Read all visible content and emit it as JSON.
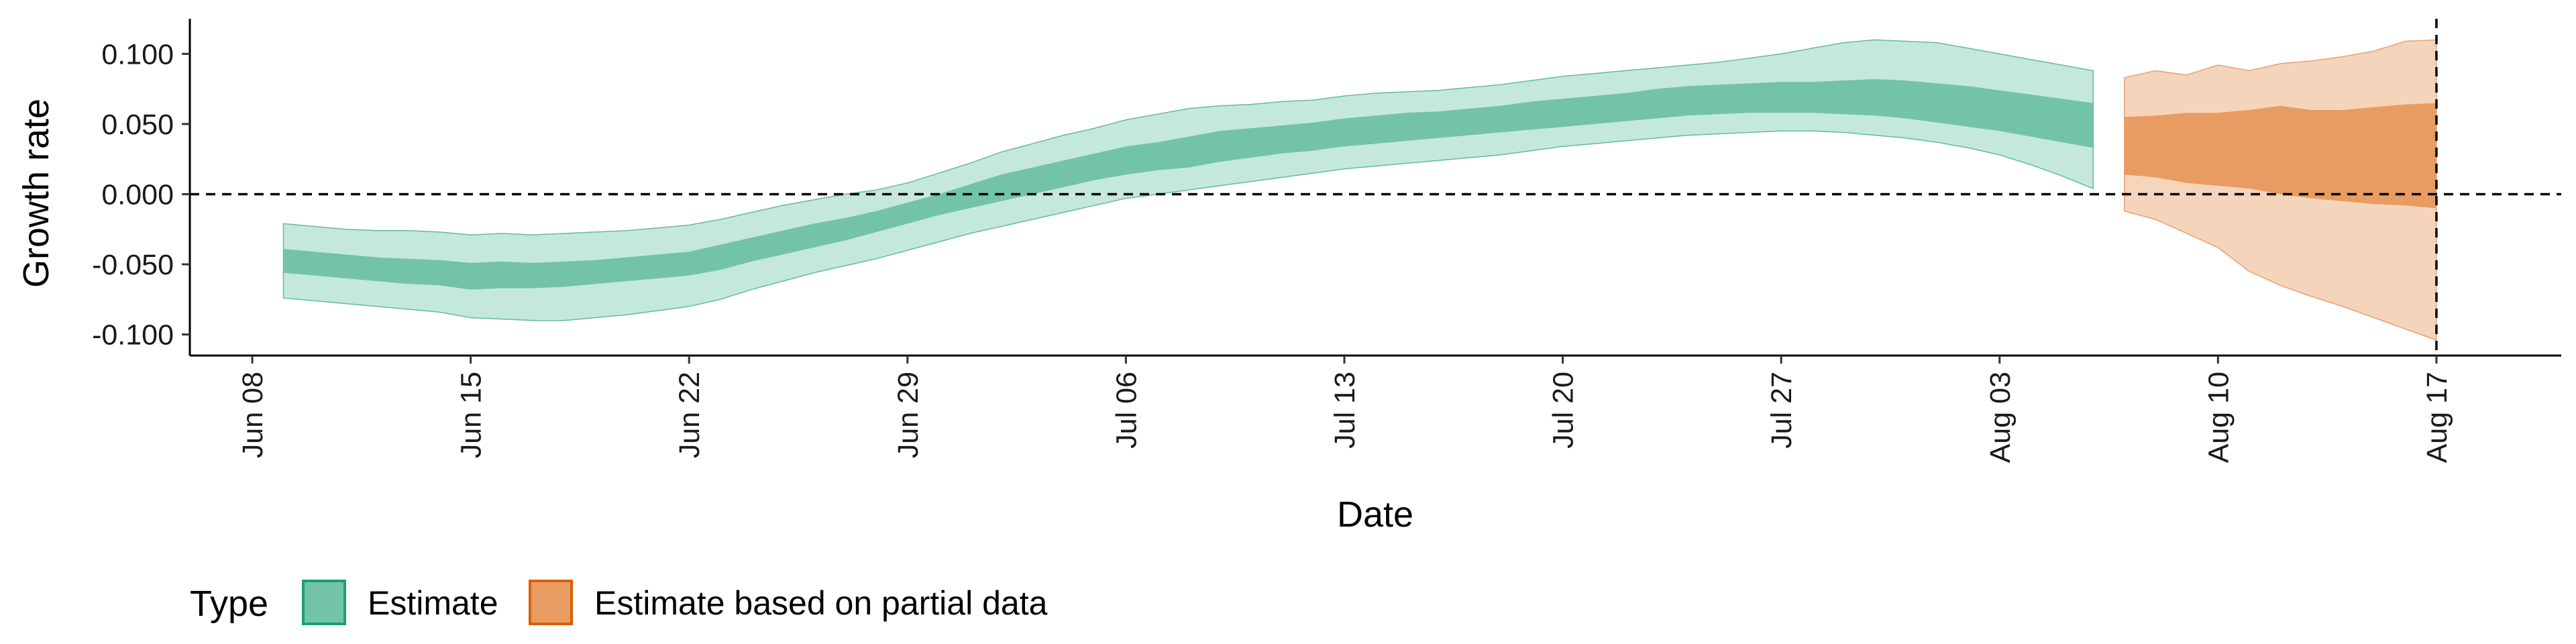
{
  "chart_data": {
    "type": "area",
    "xlabel": "Date",
    "ylabel": "Growth rate",
    "ylim": [
      -0.115,
      0.125
    ],
    "xlim": [
      "2020-06-06",
      "2020-08-21"
    ],
    "x_ticks": [
      {
        "date": "2020-06-08",
        "label": "Jun 08"
      },
      {
        "date": "2020-06-15",
        "label": "Jun 15"
      },
      {
        "date": "2020-06-22",
        "label": "Jun 22"
      },
      {
        "date": "2020-06-29",
        "label": "Jun 29"
      },
      {
        "date": "2020-07-06",
        "label": "Jul 06"
      },
      {
        "date": "2020-07-13",
        "label": "Jul 13"
      },
      {
        "date": "2020-07-20",
        "label": "Jul 20"
      },
      {
        "date": "2020-07-27",
        "label": "Jul 27"
      },
      {
        "date": "2020-08-03",
        "label": "Aug 03"
      },
      {
        "date": "2020-08-10",
        "label": "Aug 10"
      },
      {
        "date": "2020-08-17",
        "label": "Aug 17"
      }
    ],
    "y_ticks": [
      {
        "value": 0.1,
        "label": "0.100"
      },
      {
        "value": 0.05,
        "label": "0.050"
      },
      {
        "value": 0.0,
        "label": "0.000"
      },
      {
        "value": -0.05,
        "label": "-0.050"
      },
      {
        "value": -0.1,
        "label": "-0.100"
      }
    ],
    "hline": 0,
    "vline": "2020-08-17",
    "grid": false,
    "legend": {
      "title": "Type",
      "position": "bottom-left",
      "entries": [
        {
          "label": "Estimate",
          "fill": "#73c3a9",
          "stroke": "#1b9e77"
        },
        {
          "label": "Estimate based on partial data",
          "fill": "#e89c62",
          "stroke": "#d95f02"
        }
      ]
    },
    "series": [
      {
        "type": "Estimate",
        "colors": {
          "outer": "#c5e8dc",
          "inner": "#73c3a9",
          "edge": "#66bb99"
        },
        "x": [
          "2020-06-09",
          "2020-06-10",
          "2020-06-11",
          "2020-06-12",
          "2020-06-13",
          "2020-06-14",
          "2020-06-15",
          "2020-06-16",
          "2020-06-17",
          "2020-06-18",
          "2020-06-19",
          "2020-06-20",
          "2020-06-21",
          "2020-06-22",
          "2020-06-23",
          "2020-06-24",
          "2020-06-25",
          "2020-06-26",
          "2020-06-27",
          "2020-06-28",
          "2020-06-29",
          "2020-06-30",
          "2020-07-01",
          "2020-07-02",
          "2020-07-03",
          "2020-07-04",
          "2020-07-05",
          "2020-07-06",
          "2020-07-07",
          "2020-07-08",
          "2020-07-09",
          "2020-07-10",
          "2020-07-11",
          "2020-07-12",
          "2020-07-13",
          "2020-07-14",
          "2020-07-15",
          "2020-07-16",
          "2020-07-17",
          "2020-07-18",
          "2020-07-19",
          "2020-07-20",
          "2020-07-21",
          "2020-07-22",
          "2020-07-23",
          "2020-07-24",
          "2020-07-25",
          "2020-07-26",
          "2020-07-27",
          "2020-07-28",
          "2020-07-29",
          "2020-07-30",
          "2020-07-31",
          "2020-08-01",
          "2020-08-02",
          "2020-08-03",
          "2020-08-04",
          "2020-08-05",
          "2020-08-06"
        ],
        "upper90": [
          -0.021,
          -0.023,
          -0.025,
          -0.026,
          -0.026,
          -0.027,
          -0.029,
          -0.028,
          -0.029,
          -0.028,
          -0.027,
          -0.026,
          -0.024,
          -0.022,
          -0.018,
          -0.013,
          -0.008,
          -0.004,
          0.0,
          0.003,
          0.008,
          0.015,
          0.022,
          0.03,
          0.036,
          0.042,
          0.047,
          0.053,
          0.057,
          0.061,
          0.063,
          0.064,
          0.066,
          0.067,
          0.07,
          0.072,
          0.073,
          0.074,
          0.076,
          0.078,
          0.081,
          0.084,
          0.086,
          0.088,
          0.09,
          0.092,
          0.094,
          0.097,
          0.1,
          0.104,
          0.108,
          0.11,
          0.109,
          0.108,
          0.104,
          0.1,
          0.096,
          0.092,
          0.088
        ],
        "upper50": [
          -0.039,
          -0.041,
          -0.043,
          -0.045,
          -0.046,
          -0.047,
          -0.049,
          -0.048,
          -0.049,
          -0.048,
          -0.047,
          -0.045,
          -0.043,
          -0.041,
          -0.036,
          -0.031,
          -0.026,
          -0.021,
          -0.017,
          -0.012,
          -0.006,
          0.0,
          0.007,
          0.014,
          0.019,
          0.024,
          0.029,
          0.034,
          0.037,
          0.041,
          0.045,
          0.047,
          0.049,
          0.051,
          0.054,
          0.056,
          0.058,
          0.059,
          0.061,
          0.063,
          0.066,
          0.068,
          0.07,
          0.072,
          0.075,
          0.077,
          0.078,
          0.079,
          0.08,
          0.08,
          0.081,
          0.082,
          0.081,
          0.079,
          0.077,
          0.074,
          0.071,
          0.068,
          0.065
        ],
        "lower50": [
          -0.056,
          -0.058,
          -0.06,
          -0.062,
          -0.064,
          -0.065,
          -0.068,
          -0.067,
          -0.067,
          -0.066,
          -0.064,
          -0.062,
          -0.06,
          -0.058,
          -0.054,
          -0.048,
          -0.043,
          -0.038,
          -0.033,
          -0.027,
          -0.021,
          -0.015,
          -0.01,
          -0.005,
          0.0,
          0.005,
          0.01,
          0.014,
          0.017,
          0.019,
          0.023,
          0.026,
          0.029,
          0.031,
          0.034,
          0.036,
          0.038,
          0.04,
          0.042,
          0.044,
          0.046,
          0.048,
          0.05,
          0.052,
          0.054,
          0.056,
          0.057,
          0.058,
          0.058,
          0.058,
          0.057,
          0.056,
          0.054,
          0.051,
          0.048,
          0.045,
          0.041,
          0.037,
          0.033
        ],
        "lower90": [
          -0.074,
          -0.076,
          -0.078,
          -0.08,
          -0.082,
          -0.084,
          -0.088,
          -0.089,
          -0.09,
          -0.09,
          -0.088,
          -0.086,
          -0.083,
          -0.08,
          -0.075,
          -0.068,
          -0.062,
          -0.056,
          -0.051,
          -0.046,
          -0.04,
          -0.034,
          -0.028,
          -0.023,
          -0.018,
          -0.013,
          -0.008,
          -0.003,
          0.0,
          0.003,
          0.006,
          0.009,
          0.012,
          0.015,
          0.018,
          0.02,
          0.022,
          0.024,
          0.026,
          0.028,
          0.031,
          0.034,
          0.036,
          0.038,
          0.04,
          0.042,
          0.043,
          0.044,
          0.045,
          0.045,
          0.044,
          0.042,
          0.04,
          0.037,
          0.033,
          0.028,
          0.021,
          0.013,
          0.004
        ]
      },
      {
        "type": "Estimate based on partial data",
        "colors": {
          "outer": "#f5d4bc",
          "inner": "#e89c62",
          "edge": "#e8a070"
        },
        "x": [
          "2020-08-07",
          "2020-08-08",
          "2020-08-09",
          "2020-08-10",
          "2020-08-11",
          "2020-08-12",
          "2020-08-13",
          "2020-08-14",
          "2020-08-15",
          "2020-08-16",
          "2020-08-17"
        ],
        "upper90": [
          0.083,
          0.088,
          0.085,
          0.092,
          0.088,
          0.093,
          0.095,
          0.098,
          0.102,
          0.109,
          0.11
        ],
        "upper50": [
          0.055,
          0.056,
          0.058,
          0.058,
          0.06,
          0.063,
          0.06,
          0.06,
          0.062,
          0.064,
          0.065
        ],
        "lower50": [
          0.014,
          0.012,
          0.008,
          0.006,
          0.004,
          0.0,
          -0.003,
          -0.005,
          -0.007,
          -0.008,
          -0.01
        ],
        "lower90": [
          -0.012,
          -0.018,
          -0.028,
          -0.038,
          -0.055,
          -0.065,
          -0.073,
          -0.08,
          -0.088,
          -0.096,
          -0.104
        ]
      }
    ]
  }
}
